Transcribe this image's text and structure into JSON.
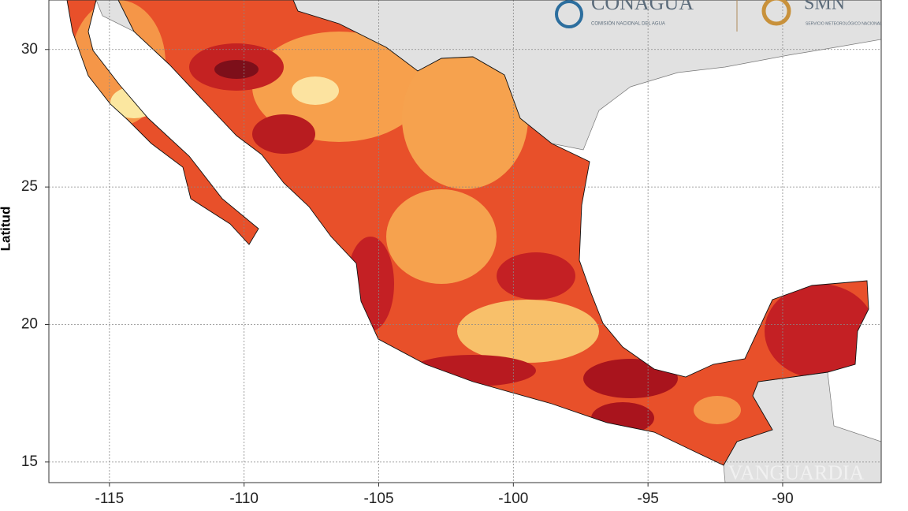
{
  "map": {
    "ylabel": "Latitud",
    "xlim": [
      -117.25,
      -86.34
    ],
    "ylim": [
      14.25,
      31.8
    ],
    "xticks": [
      -115,
      -110,
      -105,
      -100,
      -95,
      -90
    ],
    "yticks": [
      15,
      20,
      25,
      30
    ],
    "grid": true,
    "logos": {
      "conagua": "CONAGUA",
      "conagua_sub": "COMISIÓN NACIONAL DEL AGUA",
      "smn": "SMN",
      "smn_sub": "SERVICIO METEOROLÓGICO NACIONAL"
    },
    "watermark": "VANGUARDIA"
  }
}
